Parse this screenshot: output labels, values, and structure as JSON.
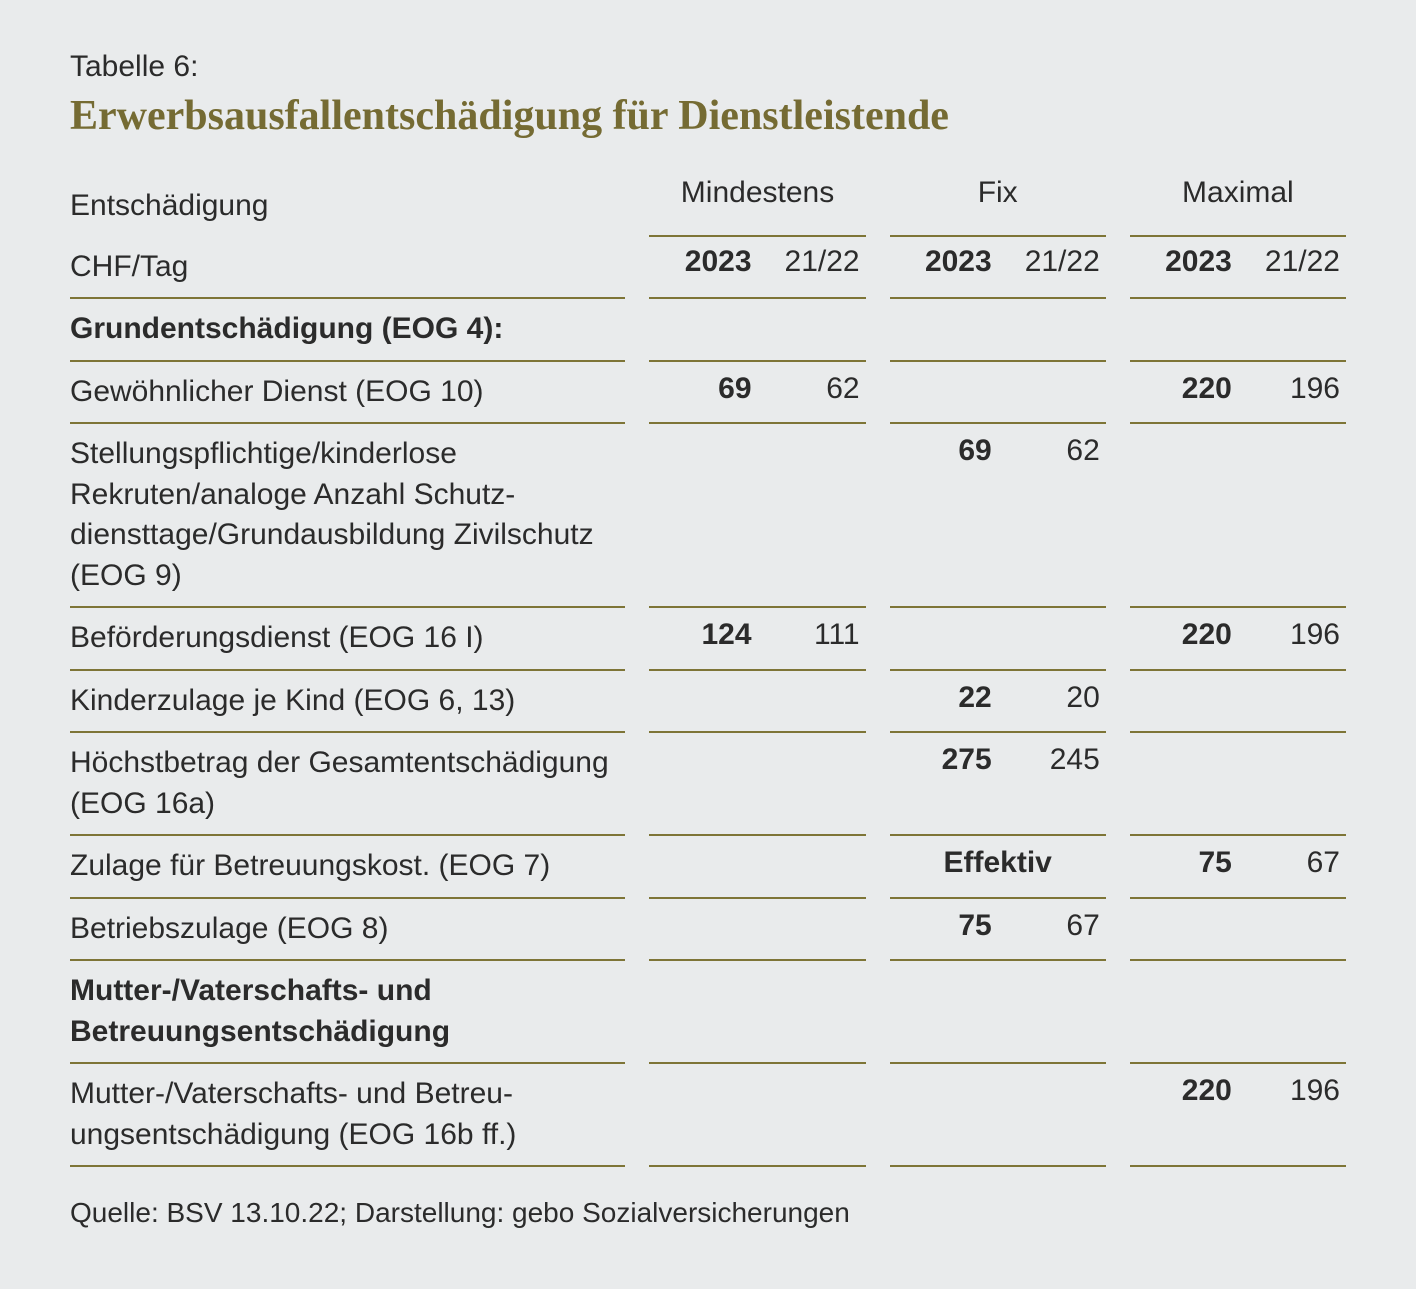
{
  "colors": {
    "background": "#e9ebec",
    "text": "#2b2b2b",
    "accent": "#756b33",
    "rule": "#7e7537"
  },
  "typography": {
    "body_family": "Segoe UI, Helvetica Neue, Arial, sans-serif",
    "title_family": "Georgia, Times New Roman, serif",
    "body_size_pt": 22,
    "title_size_pt": 32
  },
  "pretitle": "Tabelle 6:",
  "title": "Erwerbsausfallentschädigung für Dienstleistende",
  "header": {
    "label_line1": "Entschädigung",
    "label_line2": "CHF/Tag",
    "groups": [
      "Mindestens",
      "Fix",
      "Maximal"
    ],
    "year_current": "2023",
    "year_prev": "21/22"
  },
  "rows": [
    {
      "type": "section",
      "label": "Grundentschädigung (EOG 4):"
    },
    {
      "type": "data",
      "label": "Gewöhnlicher Dienst (EOG 10)",
      "min_cur": "69",
      "min_prev": "62",
      "fix_cur": "",
      "fix_prev": "",
      "max_cur": "220",
      "max_prev": "196"
    },
    {
      "type": "data",
      "label": "Stellungspflichtige/kinderlose Rekruten/analoge Anzahl Schutz­diensttage/Grundausbildung Zivilschutz (EOG 9)",
      "min_cur": "",
      "min_prev": "",
      "fix_cur": "69",
      "fix_prev": "62",
      "max_cur": "",
      "max_prev": ""
    },
    {
      "type": "data",
      "label": "Beförderungsdienst (EOG 16 I)",
      "min_cur": "124",
      "min_prev": "111",
      "fix_cur": "",
      "fix_prev": "",
      "max_cur": "220",
      "max_prev": "196"
    },
    {
      "type": "data",
      "label": "Kinderzulage je Kind (EOG 6, 13)",
      "min_cur": "",
      "min_prev": "",
      "fix_cur": "22",
      "fix_prev": "20",
      "max_cur": "",
      "max_prev": ""
    },
    {
      "type": "data",
      "label": "Höchstbetrag der Gesamt­entschädigung (EOG 16a)",
      "min_cur": "",
      "min_prev": "",
      "fix_cur": "275",
      "fix_prev": "245",
      "max_cur": "",
      "max_prev": ""
    },
    {
      "type": "data",
      "label": "Zulage für Betreuungskost. (EOG 7)",
      "min_cur": "",
      "min_prev": "",
      "fix_span": "Effektiv",
      "max_cur": "75",
      "max_prev": "67"
    },
    {
      "type": "data",
      "label": "Betriebszulage (EOG 8)",
      "min_cur": "",
      "min_prev": "",
      "fix_cur": "75",
      "fix_prev": "67",
      "max_cur": "",
      "max_prev": ""
    },
    {
      "type": "section",
      "label": "Mutter-/Vaterschafts- und Betreuungsentschädigung"
    },
    {
      "type": "data",
      "label": "Mutter-/Vaterschafts- und Betreu­ungsentschädigung (EOG 16b ff.)",
      "min_cur": "",
      "min_prev": "",
      "fix_cur": "",
      "fix_prev": "",
      "max_cur": "220",
      "max_prev": "196"
    }
  ],
  "source": "Quelle: BSV 13.10.22; Darstellung: gebo Sozialversicherungen"
}
